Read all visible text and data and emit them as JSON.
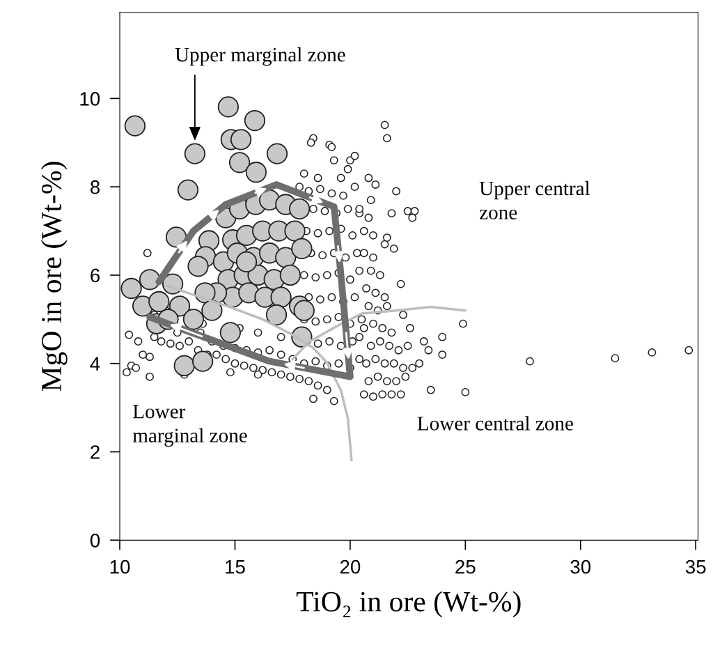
{
  "chart_data": {
    "type": "scatter",
    "xlabel": "TiO₂ in ore (Wt-%)",
    "ylabel": "MgO in ore (Wt-%)",
    "xlim": [
      10,
      35.1
    ],
    "ylim": [
      0,
      11.95
    ],
    "xticks": [
      10,
      15,
      20,
      25,
      30,
      35
    ],
    "yticks": [
      0,
      2,
      4,
      6,
      8,
      10
    ],
    "grid": false,
    "legend": false,
    "marker": "circle",
    "series": [
      {
        "type": "scatter",
        "color": "#c8c8c8",
        "x": [
          10.66,
          13.26,
          12.96,
          14.71,
          15.86,
          14.83,
          15.26,
          15.2,
          16.83,
          15.92,
          12.45,
          13.87,
          13.72,
          14.6,
          15.2,
          15.9,
          16.5,
          17.2,
          17.8,
          14.9,
          15.5,
          16.2,
          16.9,
          17.6,
          14.5,
          15.1,
          15.8,
          16.5,
          17.2,
          17.9,
          14.7,
          15.4,
          16.0,
          16.7,
          17.4,
          14.9,
          15.6,
          16.3,
          17.0,
          17.8,
          16.8,
          17.9,
          14.2,
          13.7,
          14.0,
          12.3,
          11.3,
          10.5,
          11.0,
          11.7,
          12.6,
          11.6,
          12.1,
          13.2,
          14.8,
          12.8,
          13.6,
          18.0,
          13.4,
          15.5
        ],
        "values": [
          9.38,
          8.75,
          7.93,
          9.81,
          9.5,
          9.07,
          9.07,
          8.55,
          8.75,
          8.33,
          6.86,
          6.78,
          6.42,
          7.3,
          7.5,
          7.6,
          7.7,
          7.6,
          7.5,
          6.8,
          6.9,
          7.0,
          7.0,
          7.0,
          6.3,
          6.5,
          6.4,
          6.5,
          6.4,
          6.6,
          5.9,
          6.0,
          6.0,
          5.9,
          6.0,
          5.5,
          5.6,
          5.5,
          5.5,
          5.3,
          5.1,
          4.6,
          5.6,
          5.6,
          5.2,
          5.8,
          5.9,
          5.7,
          5.3,
          5.4,
          5.3,
          4.9,
          5.0,
          5.0,
          4.7,
          3.95,
          4.05,
          5.2,
          6.2,
          6.3
        ]
      },
      {
        "type": "scatter",
        "color": "#222222",
        "x": [
          10.3,
          10.5,
          10.7,
          10.4,
          10.8,
          11.3,
          11.0,
          11.3,
          11.5,
          11.8,
          12.2,
          12.6,
          13.0,
          13.4,
          13.8,
          14.2,
          14.6,
          15.0,
          15.4,
          15.8,
          16.2,
          16.6,
          17.0,
          17.4,
          17.8,
          14.0,
          14.5,
          15.0,
          15.5,
          16.0,
          16.5,
          17.0,
          17.5,
          13.5,
          12.5,
          11.5,
          12.0,
          13.6,
          15.2,
          16.0,
          17.0,
          14.8,
          16.0,
          11.2,
          12.8,
          18.2,
          18.6,
          19.0,
          19.3,
          18.4,
          18.0,
          18.5,
          19.0,
          19.5,
          20.0,
          20.4,
          18.6,
          19.1,
          19.6,
          20.1,
          20.4,
          18.0,
          18.5,
          19.0,
          19.5,
          20.0,
          20.5,
          18.2,
          18.7,
          19.2,
          19.7,
          20.2,
          18.0,
          18.5,
          19.0,
          19.5,
          20.0,
          20.4,
          18.3,
          18.8,
          19.3,
          19.8,
          20.3,
          18.1,
          18.6,
          19.1,
          19.6,
          20.1,
          18.4,
          18.9,
          19.4,
          19.9,
          20.4,
          18.2,
          18.7,
          19.2,
          19.7,
          20.6,
          21.0,
          21.4,
          21.8,
          22.2,
          20.8,
          21.2,
          21.6,
          22.0,
          22.4,
          20.7,
          21.1,
          21.5,
          21.9,
          22.3,
          20.9,
          21.3,
          21.7,
          22.1,
          20.6,
          21.0,
          21.4,
          21.8,
          20.8,
          21.2,
          21.6,
          20.7,
          21.1,
          21.5,
          20.9,
          21.3,
          20.6,
          21.0,
          20.6,
          21.0,
          20.4,
          20.8,
          20.2,
          20.8,
          19.6,
          19.9,
          18.6,
          18.0,
          17.8,
          20.9,
          23.0,
          22.7,
          23.4,
          22.6,
          22.3,
          24.9,
          25.0,
          27.8,
          31.5,
          33.1,
          34.7,
          21.5,
          21.6,
          18.4,
          18.3,
          19.1,
          19.2,
          19.3,
          20.0,
          20.2,
          21.1,
          22.0,
          22.5,
          22.8,
          22.7,
          21.8,
          22.2,
          21.5,
          21.6,
          21.9,
          23.2,
          24.0,
          24.0,
          23.5,
          22.5
        ],
        "values": [
          3.8,
          3.95,
          3.9,
          4.65,
          4.5,
          4.15,
          4.2,
          3.7,
          4.6,
          4.5,
          4.45,
          4.4,
          4.5,
          4.3,
          4.2,
          4.2,
          4.1,
          4.0,
          3.95,
          3.9,
          3.85,
          3.8,
          3.75,
          3.7,
          3.65,
          4.5,
          4.4,
          4.35,
          4.3,
          4.25,
          4.3,
          4.2,
          4.1,
          4.7,
          4.7,
          5.1,
          5.2,
          4.9,
          4.8,
          4.7,
          4.6,
          3.8,
          3.75,
          6.5,
          3.75,
          3.6,
          3.5,
          3.4,
          3.15,
          3.2,
          4.0,
          4.05,
          3.95,
          4.0,
          3.9,
          4.1,
          4.45,
          4.5,
          4.4,
          4.5,
          4.6,
          5.0,
          4.95,
          5.0,
          5.05,
          4.9,
          5.0,
          5.5,
          5.45,
          5.5,
          5.4,
          5.5,
          6.0,
          5.95,
          6.0,
          6.05,
          5.9,
          6.1,
          6.5,
          6.45,
          6.5,
          6.4,
          6.5,
          7.0,
          6.95,
          7.0,
          7.05,
          6.9,
          7.5,
          7.45,
          7.4,
          7.5,
          7.4,
          7.9,
          7.95,
          7.85,
          7.8,
          3.3,
          3.25,
          3.3,
          3.3,
          3.3,
          3.6,
          3.7,
          3.6,
          3.6,
          3.7,
          4.0,
          4.1,
          4.0,
          4.0,
          3.9,
          4.4,
          4.5,
          4.4,
          4.3,
          4.8,
          4.9,
          4.8,
          4.7,
          5.3,
          5.2,
          5.3,
          5.7,
          5.6,
          5.5,
          6.1,
          6.0,
          6.5,
          6.4,
          7.0,
          6.9,
          7.5,
          7.3,
          8.0,
          8.2,
          8.2,
          8.4,
          8.2,
          8.3,
          8.0,
          7.7,
          4.0,
          3.9,
          4.3,
          4.8,
          5.1,
          4.9,
          3.35,
          4.05,
          4.12,
          4.25,
          4.3,
          9.4,
          9.1,
          9.1,
          9.0,
          8.95,
          8.9,
          8.6,
          8.6,
          8.7,
          8.05,
          7.9,
          7.45,
          7.45,
          7.3,
          7.4,
          5.8,
          6.7,
          6.85,
          6.6,
          4.5,
          4.6,
          4.2,
          3.4,
          4.4
        ]
      },
      {
        "type": "line",
        "marker": "none",
        "color": "#bdbdbd",
        "x": [
          12.05,
          13.5,
          14.77,
          16.2,
          17.5,
          18.4,
          19.0,
          19.6,
          19.9,
          20.06
        ],
        "values": [
          5.76,
          5.5,
          5.28,
          5.0,
          4.65,
          4.35,
          4.02,
          3.39,
          2.76,
          1.81
        ]
      },
      {
        "type": "line",
        "marker": "none",
        "color": "#bdbdbd",
        "x": [
          17.5,
          18.25,
          19.3,
          20.5,
          22.0,
          23.5,
          25.0
        ],
        "values": [
          4.1,
          4.5,
          4.81,
          5.13,
          5.2,
          5.28,
          5.2
        ]
      },
      {
        "type": "line",
        "marker": "none",
        "color": "#6e6e6e",
        "x": [
          11.7,
          13.2,
          14.6,
          16.8,
          19.3,
          19.6,
          20.0,
          16.5,
          11.3
        ],
        "values": [
          5.85,
          7.0,
          7.6,
          8.05,
          7.55,
          6.0,
          3.7,
          4.05,
          5.05
        ]
      }
    ],
    "annotations": [
      "Upper marginal zone",
      "Upper central\nzone",
      "Lower\nmarginal zone",
      "Lower central zone"
    ]
  }
}
